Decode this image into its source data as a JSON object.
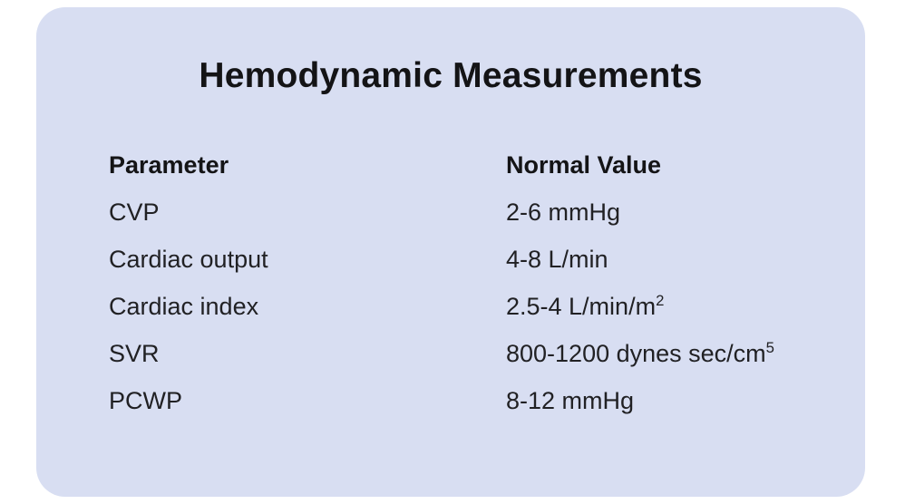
{
  "colors": {
    "page_background": "#ffffff",
    "card_background": "#d8def2",
    "text": "#1c1c1e"
  },
  "card": {
    "title": "Hemodynamic Measurements"
  },
  "table": {
    "headers": [
      "Parameter",
      "Normal Value"
    ],
    "rows": [
      {
        "parameter": "CVP",
        "value": "2-6 mmHg",
        "value_sup": ""
      },
      {
        "parameter": "Cardiac output",
        "value": "4-8 L/min",
        "value_sup": ""
      },
      {
        "parameter": "Cardiac index",
        "value": "2.5-4 L/min/m",
        "value_sup": "2"
      },
      {
        "parameter": "SVR",
        "value": "800-1200 dynes sec/cm",
        "value_sup": "5"
      },
      {
        "parameter": "PCWP",
        "value": "8-12 mmHg",
        "value_sup": ""
      }
    ]
  }
}
